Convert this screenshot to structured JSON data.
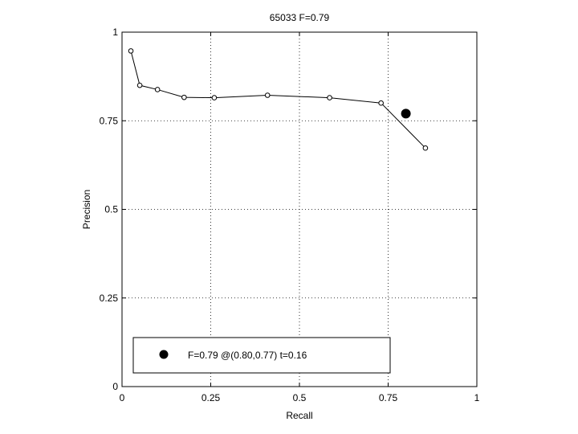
{
  "chart_data": {
    "type": "line",
    "title": "65033 F=0.79",
    "xlabel": "Recall",
    "ylabel": "Precision",
    "xlim": [
      0,
      1
    ],
    "ylim": [
      0,
      1
    ],
    "xticks": [
      0,
      0.25,
      0.5,
      0.75,
      1
    ],
    "xtick_labels": [
      "0",
      "0.25",
      "0.5",
      "0.75",
      "1"
    ],
    "yticks": [
      0,
      0.25,
      0.5,
      0.75,
      1
    ],
    "ytick_labels": [
      "0",
      "0.25",
      "0.5",
      "0.75",
      "1"
    ],
    "grid": true,
    "series": [
      {
        "x": [
          0.025,
          0.05,
          0.1,
          0.175,
          0.26,
          0.41,
          0.585,
          0.73,
          0.855
        ],
        "y": [
          0.947,
          0.85,
          0.838,
          0.816,
          0.815,
          0.822,
          0.815,
          0.8,
          0.673
        ],
        "marker": "open-circle",
        "color": "#000000"
      }
    ],
    "highlight_point": {
      "x": 0.8,
      "y": 0.77,
      "marker": "filled-circle",
      "color": "#000000"
    },
    "legend": {
      "position": "bottom-left",
      "label": "F=0.79 @(0.80,0.77) t=0.16"
    }
  }
}
